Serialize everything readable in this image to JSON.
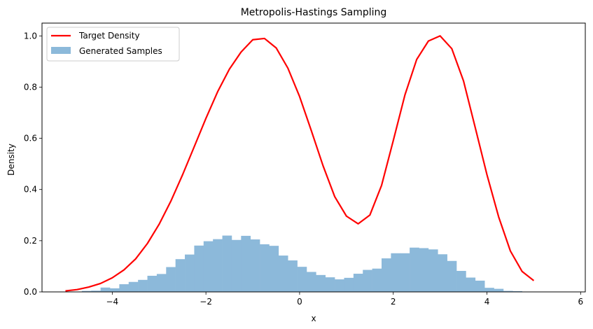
{
  "chart_data": {
    "type": "bar",
    "title": "Metropolis-Hastings Sampling",
    "xlabel": "x",
    "ylabel": "Density",
    "xlim": [
      -5.5,
      6.1
    ],
    "ylim": [
      0,
      1.05
    ],
    "xticks": [
      -4,
      -2,
      0,
      2,
      4,
      6
    ],
    "yticks": [
      0.0,
      0.2,
      0.4,
      0.6,
      0.8,
      1.0
    ],
    "xtick_labels": [
      "−4",
      "−2",
      "0",
      "2",
      "4",
      "6"
    ],
    "ytick_labels": [
      "0.0",
      "0.2",
      "0.4",
      "0.6",
      "0.8",
      "1.0"
    ],
    "grid": false,
    "legend": {
      "position": "top-left",
      "entries": [
        {
          "label": "Target Density",
          "kind": "line",
          "color": "#ff0000"
        },
        {
          "label": "Generated Samples",
          "kind": "patch",
          "color": "#8cb9da"
        }
      ]
    },
    "series": [
      {
        "name": "Target Density",
        "kind": "line",
        "color": "#ff0000",
        "x": [
          -5.0,
          -4.75,
          -4.5,
          -4.25,
          -4.0,
          -3.75,
          -3.5,
          -3.25,
          -3.0,
          -2.75,
          -2.5,
          -2.25,
          -2.0,
          -1.75,
          -1.5,
          -1.25,
          -1.0,
          -0.75,
          -0.5,
          -0.25,
          0.0,
          0.25,
          0.5,
          0.75,
          1.0,
          1.25,
          1.5,
          1.75,
          2.0,
          2.25,
          2.5,
          2.75,
          3.0,
          3.25,
          3.5,
          3.75,
          4.0,
          4.25,
          4.5,
          4.75,
          5.0
        ],
        "y": [
          0.004,
          0.009,
          0.019,
          0.033,
          0.055,
          0.086,
          0.129,
          0.189,
          0.264,
          0.354,
          0.457,
          0.567,
          0.678,
          0.782,
          0.87,
          0.937,
          0.985,
          0.99,
          0.953,
          0.874,
          0.763,
          0.63,
          0.493,
          0.372,
          0.296,
          0.266,
          0.3,
          0.416,
          0.591,
          0.77,
          0.908,
          0.98,
          1.0,
          0.95,
          0.824,
          0.642,
          0.458,
          0.293,
          0.16,
          0.08,
          0.044
        ]
      },
      {
        "name": "Generated Samples",
        "kind": "histogram",
        "color": "#8cb9da",
        "bin_start": -4.65,
        "bin_width": 0.2,
        "values": [
          0.004,
          0.005,
          0.017,
          0.014,
          0.03,
          0.039,
          0.047,
          0.063,
          0.07,
          0.097,
          0.128,
          0.146,
          0.181,
          0.198,
          0.206,
          0.22,
          0.203,
          0.219,
          0.205,
          0.186,
          0.18,
          0.142,
          0.123,
          0.098,
          0.078,
          0.066,
          0.057,
          0.049,
          0.055,
          0.071,
          0.086,
          0.091,
          0.131,
          0.151,
          0.151,
          0.173,
          0.171,
          0.166,
          0.147,
          0.121,
          0.082,
          0.056,
          0.044,
          0.016,
          0.012,
          0.004,
          0.003
        ]
      }
    ]
  }
}
